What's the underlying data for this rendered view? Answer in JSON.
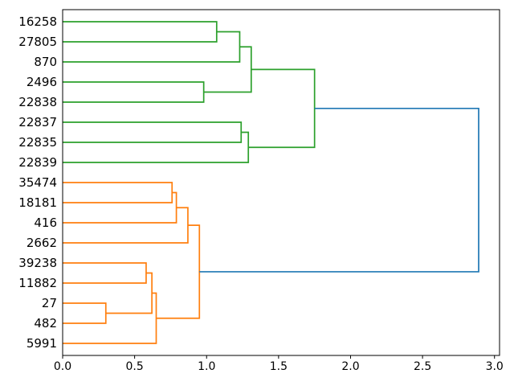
{
  "figure": {
    "kind": "dendrogram-plot",
    "background": "#ffffff"
  },
  "colors": {
    "green": "#2ca02c",
    "orange": "#ff7f0e",
    "blue": "#1f77b4",
    "axis": "#000000",
    "text": "#000000"
  },
  "axes": {
    "x_tick_labels": [
      "0.0",
      "0.5",
      "1.0",
      "1.5",
      "2.0",
      "2.5",
      "3.0"
    ],
    "x_tick_values": [
      0,
      0.5,
      1.0,
      1.5,
      2.0,
      2.5,
      3.0
    ]
  },
  "chart_data": {
    "type": "dendrogram",
    "orientation": "horizontal-right",
    "title": "",
    "xlabel": "",
    "ylabel": "",
    "xlim": [
      0,
      3.035
    ],
    "xticks": [
      0,
      0.5,
      1.0,
      1.5,
      2.0,
      2.5,
      3.0
    ],
    "grid": false,
    "leaves": [
      "16258",
      "27805",
      "870",
      "2496",
      "22838",
      "22837",
      "22835",
      "22839",
      "35474",
      "18181",
      "416",
      "2662",
      "39238",
      "11882",
      "27",
      "482",
      "5991"
    ],
    "merges": [
      {
        "id": "A",
        "children": [
          "16258",
          "27805"
        ],
        "distance": 1.07,
        "color": "green"
      },
      {
        "id": "B",
        "children": [
          "A",
          "870"
        ],
        "distance": 1.23,
        "color": "green"
      },
      {
        "id": "C",
        "children": [
          "2496",
          "22838"
        ],
        "distance": 0.98,
        "color": "green"
      },
      {
        "id": "D",
        "children": [
          "B",
          "C"
        ],
        "distance": 1.31,
        "color": "green"
      },
      {
        "id": "E",
        "children": [
          "22837",
          "22835"
        ],
        "distance": 1.24,
        "color": "green"
      },
      {
        "id": "F",
        "children": [
          "E",
          "22839"
        ],
        "distance": 1.29,
        "color": "green"
      },
      {
        "id": "G",
        "children": [
          "D",
          "F"
        ],
        "distance": 1.75,
        "color": "green"
      },
      {
        "id": "H",
        "children": [
          "35474",
          "18181"
        ],
        "distance": 0.76,
        "color": "orange"
      },
      {
        "id": "I",
        "children": [
          "H",
          "416"
        ],
        "distance": 0.79,
        "color": "orange"
      },
      {
        "id": "J",
        "children": [
          "I",
          "2662"
        ],
        "distance": 0.87,
        "color": "orange"
      },
      {
        "id": "K",
        "children": [
          "39238",
          "11882"
        ],
        "distance": 0.58,
        "color": "orange"
      },
      {
        "id": "L",
        "children": [
          "27",
          "482"
        ],
        "distance": 0.3,
        "color": "orange"
      },
      {
        "id": "M",
        "children": [
          "K",
          "L"
        ],
        "distance": 0.62,
        "color": "orange"
      },
      {
        "id": "N",
        "children": [
          "M",
          "5991"
        ],
        "distance": 0.65,
        "color": "orange"
      },
      {
        "id": "O",
        "children": [
          "J",
          "N"
        ],
        "distance": 0.95,
        "color": "orange"
      },
      {
        "id": "R",
        "children": [
          "G",
          "O"
        ],
        "distance": 2.89,
        "color": "blue"
      }
    ]
  }
}
